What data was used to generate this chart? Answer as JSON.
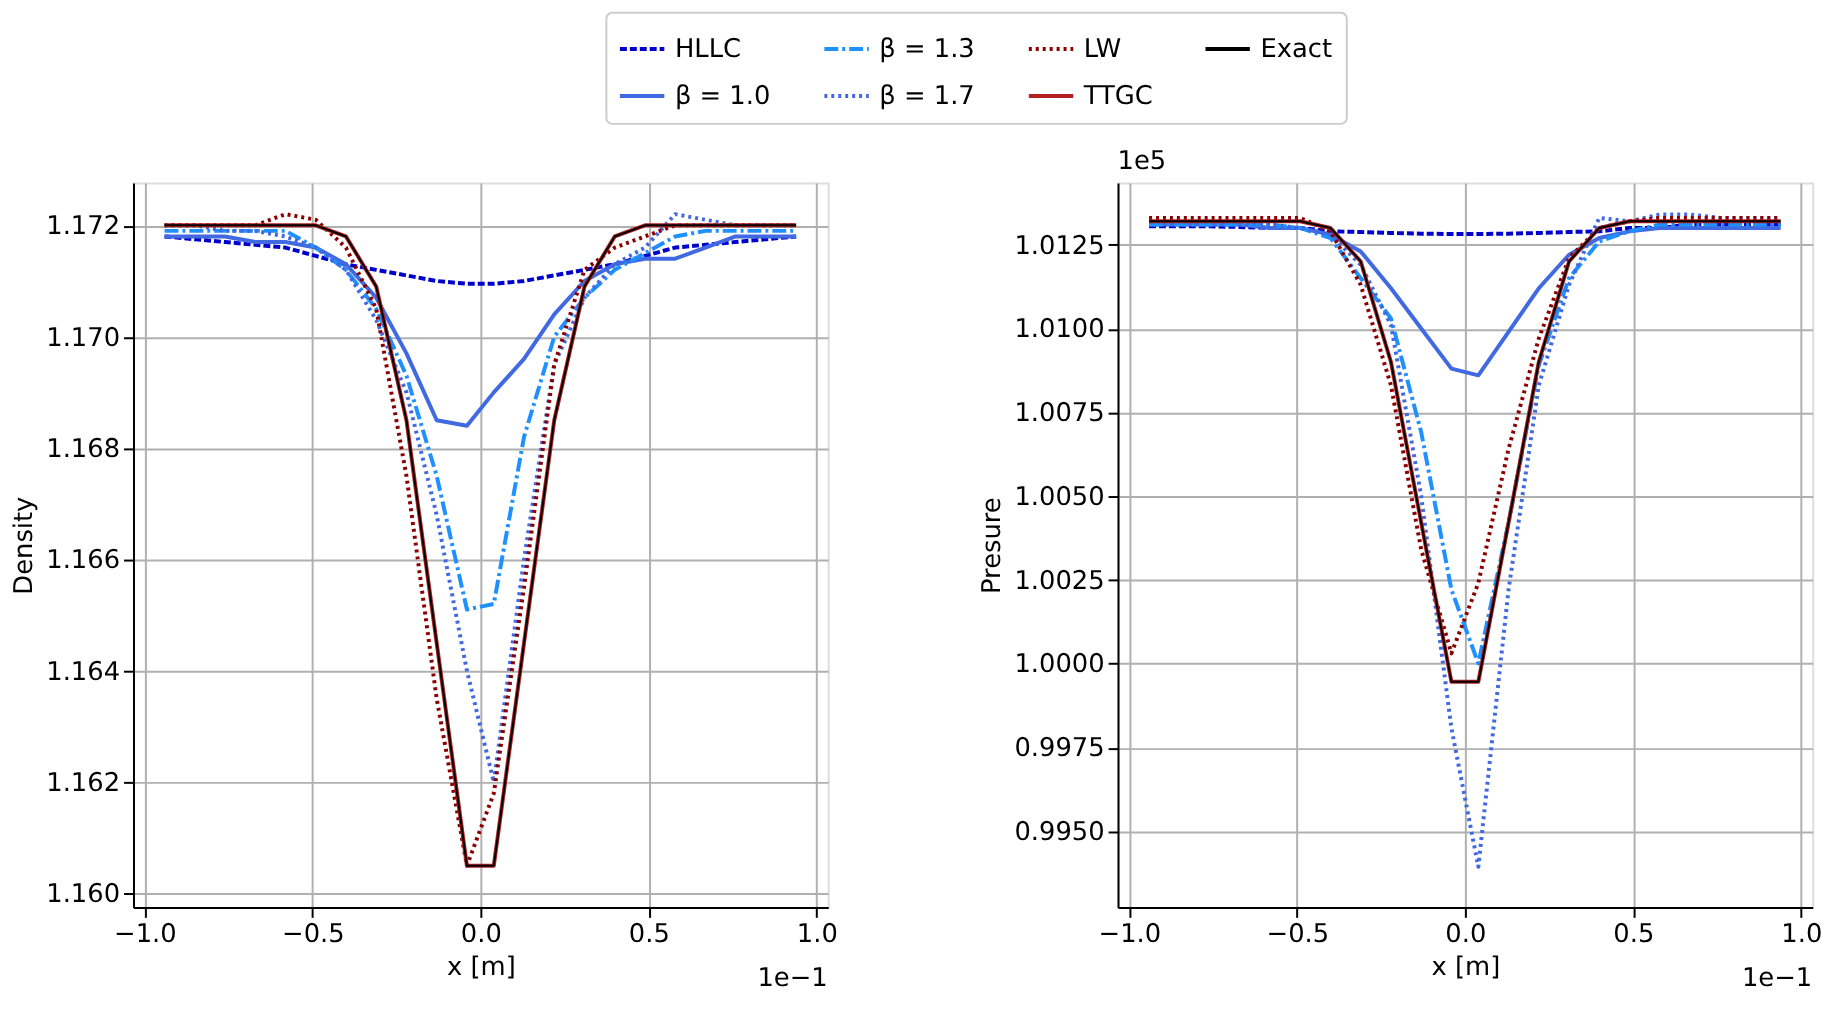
{
  "chart_data": [
    {
      "type": "line",
      "xlabel": "x [m]",
      "ylabel": "Density",
      "legend": "top",
      "grid": true,
      "marker": "none",
      "xlim": [
        -1.034,
        1.034
      ],
      "xticks": [
        {
          "value": -1.0,
          "label": "−1.0"
        },
        {
          "value": -0.5,
          "label": "−0.5"
        },
        {
          "value": 0.0,
          "label": "0.0"
        },
        {
          "value": 0.5,
          "label": "0.5"
        },
        {
          "value": 1.0,
          "label": "1.0"
        }
      ],
      "ylim": [
        1.15976,
        1.17277
      ],
      "yticks": [
        {
          "value": 1.16,
          "label": "1.160"
        },
        {
          "value": 1.162,
          "label": "1.162"
        },
        {
          "value": 1.164,
          "label": "1.164"
        },
        {
          "value": 1.166,
          "label": "1.166"
        },
        {
          "value": 1.168,
          "label": "1.168"
        },
        {
          "value": 1.17,
          "label": "1.170"
        },
        {
          "value": 1.172,
          "label": "1.172"
        }
      ],
      "annotations": [
        "1e−1"
      ],
      "x": [
        -0.94,
        -0.85,
        -0.76,
        -0.67,
        -0.58,
        -0.49,
        -0.4,
        -0.31,
        -0.22,
        -0.13,
        -0.04,
        0.04,
        0.13,
        0.22,
        0.31,
        0.4,
        0.49,
        0.58,
        0.67,
        0.76,
        0.85,
        0.94
      ],
      "series": [
        {
          "name": "HLLC",
          "color": "#0000cd",
          "line_style": "dashed",
          "values": [
            1.1718,
            1.17175,
            1.1717,
            1.17165,
            1.1716,
            1.17145,
            1.1713,
            1.1712,
            1.1711,
            1.171,
            1.17095,
            1.17095,
            1.171,
            1.1711,
            1.1712,
            1.1713,
            1.17145,
            1.1716,
            1.17165,
            1.1717,
            1.17175,
            1.1718
          ]
        },
        {
          "name": "β = 1.0",
          "color": "#4169e1",
          "line_style": "solid",
          "values": [
            1.1718,
            1.1718,
            1.1718,
            1.1717,
            1.1717,
            1.1716,
            1.1713,
            1.1707,
            1.1697,
            1.1685,
            1.1684,
            1.169,
            1.1696,
            1.1704,
            1.171,
            1.1713,
            1.1714,
            1.1714,
            1.1716,
            1.1718,
            1.1718,
            1.1718
          ]
        },
        {
          "name": "β = 1.3",
          "color": "#1e90ff",
          "line_style": "dashdot",
          "values": [
            1.1719,
            1.1719,
            1.1719,
            1.1719,
            1.1719,
            1.1716,
            1.1712,
            1.1705,
            1.1693,
            1.1675,
            1.1651,
            1.1652,
            1.1682,
            1.17,
            1.1707,
            1.1712,
            1.1715,
            1.1718,
            1.1719,
            1.1719,
            1.1719,
            1.1719
          ]
        },
        {
          "name": "β = 1.7",
          "color": "#4169e1",
          "line_style": "dotted",
          "values": [
            1.172,
            1.172,
            1.1719,
            1.1719,
            1.1718,
            1.1716,
            1.1712,
            1.1703,
            1.169,
            1.1668,
            1.164,
            1.162,
            1.166,
            1.1695,
            1.1707,
            1.1713,
            1.1716,
            1.1722,
            1.1721,
            1.172,
            1.172,
            1.172
          ]
        },
        {
          "name": "LW",
          "color": "#8b0000",
          "line_style": "dotted",
          "values": [
            1.172,
            1.172,
            1.172,
            1.172,
            1.1722,
            1.1721,
            1.1716,
            1.1705,
            1.1675,
            1.1635,
            1.1605,
            1.1618,
            1.1655,
            1.1695,
            1.1712,
            1.1716,
            1.1718,
            1.172,
            1.172,
            1.172,
            1.172,
            1.172
          ]
        },
        {
          "name": "TTGC",
          "color": "#b22222",
          "line_style": "solid",
          "values": [
            1.172,
            1.172,
            1.172,
            1.172,
            1.172,
            1.172,
            1.1718,
            1.1709,
            1.1685,
            1.1645,
            1.1605,
            1.1605,
            1.1645,
            1.1685,
            1.1709,
            1.1718,
            1.172,
            1.172,
            1.172,
            1.172,
            1.172,
            1.172
          ]
        },
        {
          "name": "Exact",
          "color": "#000000",
          "line_style": "solid",
          "values": [
            1.172,
            1.172,
            1.172,
            1.172,
            1.172,
            1.172,
            1.1718,
            1.1709,
            1.1685,
            1.1645,
            1.1605,
            1.1605,
            1.1645,
            1.1685,
            1.1709,
            1.1718,
            1.172,
            1.172,
            1.172,
            1.172,
            1.172,
            1.172
          ]
        }
      ]
    },
    {
      "type": "line",
      "xlabel": "x [m]",
      "ylabel": "Presure",
      "legend": "top",
      "grid": true,
      "marker": "none",
      "xlim": [
        -1.034,
        1.034
      ],
      "xticks": [
        {
          "value": -1.0,
          "label": "−1.0"
        },
        {
          "value": -0.5,
          "label": "−0.5"
        },
        {
          "value": 0.0,
          "label": "0.0"
        },
        {
          "value": 0.5,
          "label": "0.5"
        },
        {
          "value": 1.0,
          "label": "1.0"
        }
      ],
      "ylim": [
        0.99273,
        1.01436
      ],
      "yticks": [
        {
          "value": 0.995,
          "label": "0.9950"
        },
        {
          "value": 0.9975,
          "label": "0.9975"
        },
        {
          "value": 1.0,
          "label": "1.0000"
        },
        {
          "value": 1.0025,
          "label": "1.0025"
        },
        {
          "value": 1.005,
          "label": "1.0050"
        },
        {
          "value": 1.0075,
          "label": "1.0075"
        },
        {
          "value": 1.01,
          "label": "1.0100"
        },
        {
          "value": 1.0125,
          "label": "1.0125"
        }
      ],
      "annotations": [
        "1e−1",
        "1e5"
      ],
      "x": [
        -0.94,
        -0.85,
        -0.76,
        -0.67,
        -0.58,
        -0.49,
        -0.4,
        -0.31,
        -0.22,
        -0.13,
        -0.04,
        0.04,
        0.13,
        0.22,
        0.31,
        0.4,
        0.49,
        0.58,
        0.67,
        0.76,
        0.85,
        0.94
      ],
      "series": [
        {
          "name": "HLLC",
          "color": "#0000cd",
          "line_style": "dashed",
          "values": [
            1.01305,
            1.01305,
            1.01305,
            1.01303,
            1.013,
            1.013,
            1.0129,
            1.01288,
            1.01285,
            1.01283,
            1.01282,
            1.01282,
            1.01283,
            1.01285,
            1.01288,
            1.0129,
            1.013,
            1.013,
            1.0131,
            1.0131,
            1.0131,
            1.0131
          ]
        },
        {
          "name": "β = 1.0",
          "color": "#4169e1",
          "line_style": "solid",
          "values": [
            1.0131,
            1.0131,
            1.0131,
            1.0131,
            1.013,
            1.013,
            1.0128,
            1.0123,
            1.0112,
            1.01,
            1.0088,
            1.0086,
            1.0099,
            1.0112,
            1.0122,
            1.0127,
            1.0129,
            1.013,
            1.013,
            1.013,
            1.013,
            1.013
          ]
        },
        {
          "name": "β = 1.3",
          "color": "#1e90ff",
          "line_style": "dashdot",
          "values": [
            1.0131,
            1.0131,
            1.0131,
            1.0131,
            1.0131,
            1.013,
            1.0127,
            1.0115,
            1.0103,
            1.0069,
            1.0022,
            1.0,
            1.0042,
            1.0089,
            1.0115,
            1.0126,
            1.0129,
            1.0131,
            1.0131,
            1.0131,
            1.0131,
            1.0131
          ]
        },
        {
          "name": "β = 1.7",
          "color": "#4169e1",
          "line_style": "dotted",
          "values": [
            1.0132,
            1.0132,
            1.0132,
            1.0132,
            1.0131,
            1.013,
            1.0128,
            1.0119,
            1.0101,
            1.005,
            0.99806,
            0.99393,
            1.0022,
            1.0083,
            1.0113,
            1.0133,
            1.0132,
            1.0134,
            1.0134,
            1.0133,
            1.0133,
            1.0133
          ]
        },
        {
          "name": "LW",
          "color": "#8b0000",
          "line_style": "dotted",
          "values": [
            1.0133,
            1.0133,
            1.0133,
            1.0133,
            1.0133,
            1.0133,
            1.0129,
            1.0113,
            1.0083,
            1.0034,
            1.0003,
            1.0024,
            1.0064,
            1.0097,
            1.0121,
            1.013,
            1.0132,
            1.0133,
            1.0133,
            1.0133,
            1.0133,
            1.0133
          ]
        },
        {
          "name": "TTGC",
          "color": "#b22222",
          "line_style": "solid",
          "values": [
            1.0132,
            1.0132,
            1.0132,
            1.0132,
            1.0132,
            1.0132,
            1.013,
            1.012,
            1.009,
            1.0042,
            0.99945,
            0.99945,
            1.0042,
            1.009,
            1.012,
            1.013,
            1.0132,
            1.0132,
            1.0132,
            1.0132,
            1.0132,
            1.0132
          ]
        },
        {
          "name": "Exact",
          "color": "#000000",
          "line_style": "solid",
          "values": [
            1.0132,
            1.0132,
            1.0132,
            1.0132,
            1.0132,
            1.0132,
            1.013,
            1.012,
            1.009,
            1.0042,
            0.99945,
            0.99945,
            1.0042,
            1.009,
            1.012,
            1.013,
            1.0132,
            1.0132,
            1.0132,
            1.0132,
            1.0132,
            1.0132
          ]
        }
      ]
    }
  ]
}
